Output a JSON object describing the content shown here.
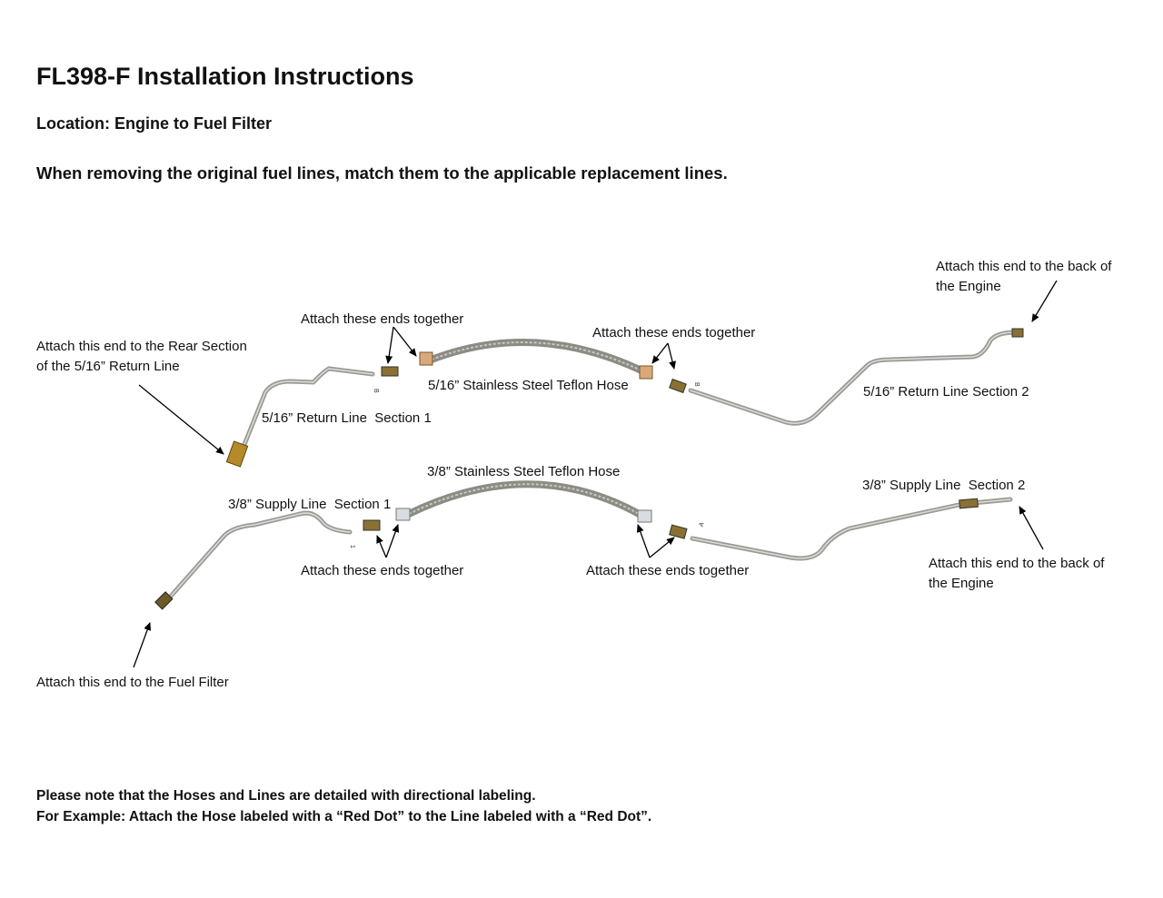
{
  "title": "FL398-F Installation Instructions",
  "location": "Location: Engine to Fuel Filter",
  "instruction": "When removing the original fuel lines, match them to the applicable replacement lines.",
  "labels": {
    "engine_return_1": "Attach this end to the back of",
    "engine_return_2": "the Engine",
    "together_top_left": "Attach these ends together",
    "together_top_right": "Attach these ends together",
    "rear_section_1": "Attach this end to the Rear Section",
    "rear_section_2": "of the 5/16” Return Line",
    "hose_516": "5/16” Stainless Steel Teflon Hose",
    "return_section_2": "5/16” Return Line Section 2",
    "return_section_1": "5/16” Return Line  Section 1",
    "hose_38": "3/8” Stainless Steel Teflon Hose",
    "supply_section_2": "3/8” Supply Line  Section 2",
    "supply_section_1": "3/8” Supply Line  Section 1",
    "together_bottom_left": "Attach these ends together",
    "together_bottom_right": "Attach these ends together",
    "engine_supply_1": "Attach this end to the back of",
    "engine_supply_2": "the Engine",
    "fuel_filter": "Attach this end to the Fuel Filter"
  },
  "tags": {
    "return": "B",
    "supply_left": "1",
    "supply_right": "A"
  },
  "footer": {
    "line1": "Please note that the Hoses and Lines are detailed with directional labeling.",
    "line2": "For Example: Attach the Hose labeled with a “Red Dot” to the Line labeled with a “Red Dot”."
  }
}
